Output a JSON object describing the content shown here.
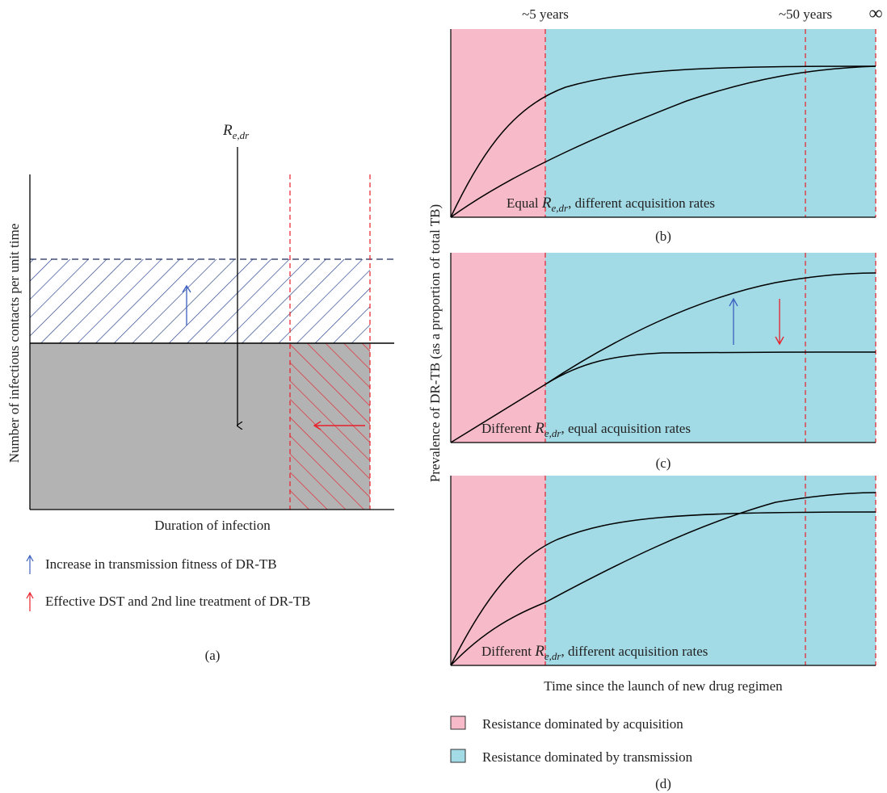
{
  "colors": {
    "acquisition": "#f7bac9",
    "transmission": "#a2dae6",
    "hatch_blue": "#1f3a8a",
    "hatch_red": "#e8202a",
    "grey_area": "#b3b3b3",
    "arrow_blue": "#3b5fbf",
    "arrow_red": "#e8202a",
    "dashed_red": "#e8202a"
  },
  "panel_a": {
    "re_symbol": "R",
    "re_subscript": "e,dr",
    "ylabel": "Number of infectious contacts per unit time",
    "xlabel": "Duration of infection",
    "legend": [
      {
        "text": "Increase in transmission fitness of DR-TB",
        "color": "blue",
        "icon": "arrow-up-icon"
      },
      {
        "text": "Effective DST and 2nd line treatment of DR-TB",
        "color": "red",
        "icon": "arrow-up-icon"
      }
    ],
    "caption": "(a)"
  },
  "right": {
    "top_labels": [
      "~5 years",
      "~50 years",
      "∞"
    ],
    "ylabel": "Prevalence of DR-TB (as a proportion of total TB)",
    "xlabel": "Time since the launch of new drug regimen",
    "panels": [
      {
        "caption_pre": "Equal ",
        "caption_post": ", different acquisition rates",
        "label": "(b)"
      },
      {
        "caption_pre": "Different ",
        "caption_post": ", equal acquisition rates",
        "label": "(c)"
      },
      {
        "caption_pre": "Different ",
        "caption_post": ", different acquisition rates",
        "label": ""
      }
    ],
    "legend": [
      {
        "text": "Resistance dominated by acquisition",
        "swatch": "acquisition"
      },
      {
        "text": "Resistance dominated by transmission",
        "swatch": "transmission"
      }
    ],
    "bottom_label": "(d)"
  }
}
